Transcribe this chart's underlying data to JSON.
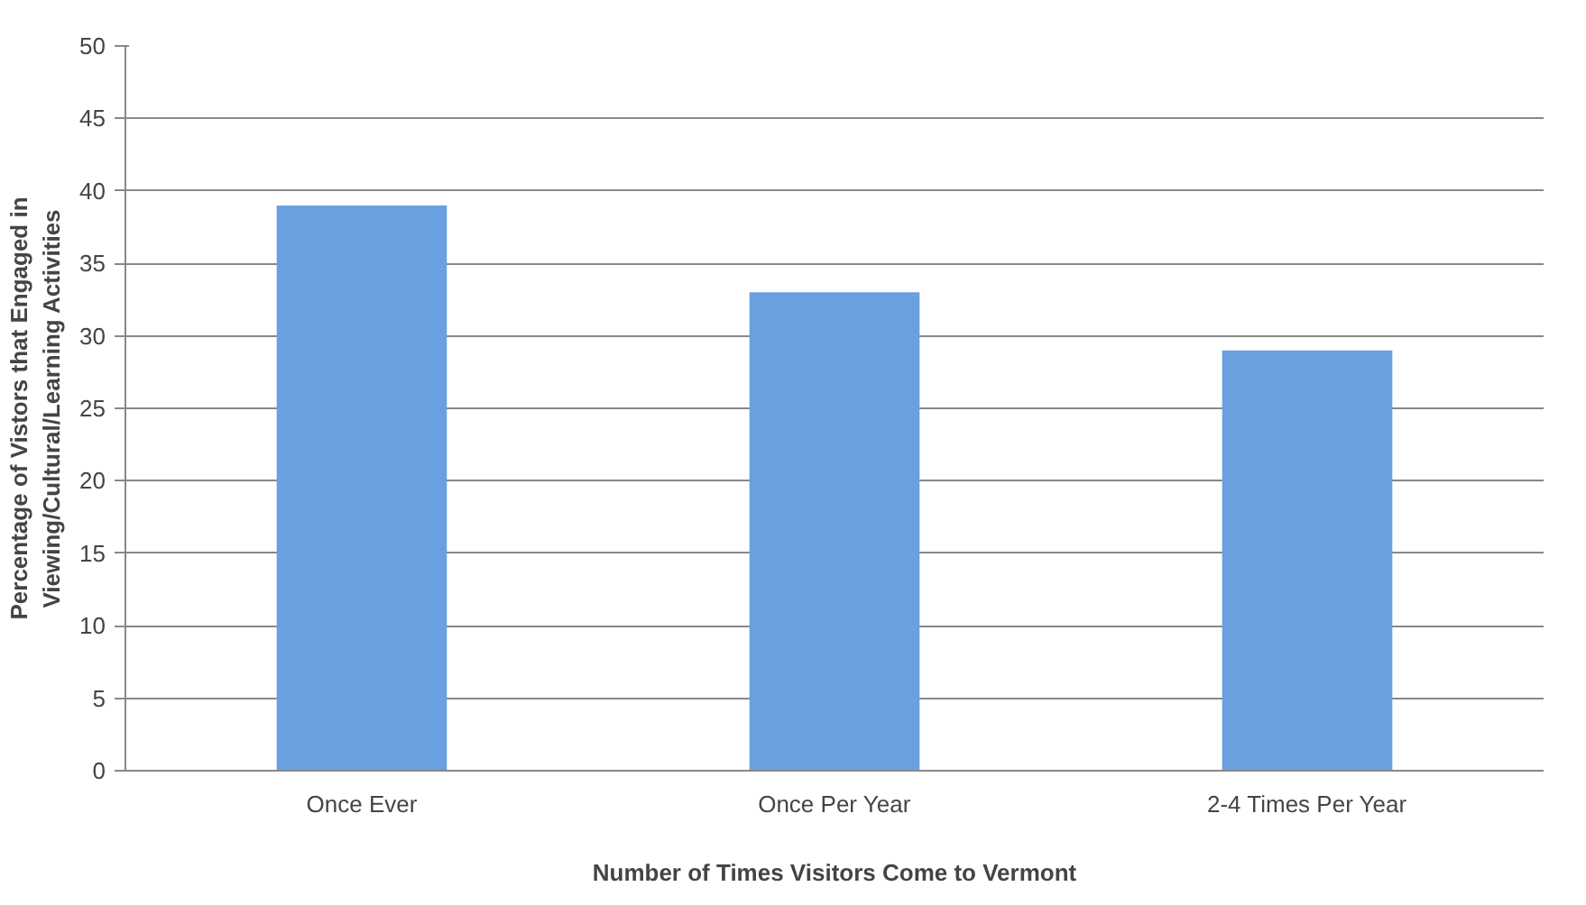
{
  "chart_data": {
    "type": "bar",
    "xlabel": "Number of Times Visitors Come to Vermont",
    "ylabel": "Percentage of Vistors that Engaged in\nViewing/Cultural/Learning Activities",
    "categories": [
      "Once Ever",
      "Once Per Year",
      "2-4 Times Per Year"
    ],
    "values": [
      39,
      33,
      29
    ],
    "color": "#6a9fe0",
    "ylim": [
      0,
      50
    ],
    "yticks": [
      0,
      5,
      10,
      15,
      20,
      25,
      30,
      35,
      40,
      45,
      50
    ],
    "grid": "y"
  }
}
